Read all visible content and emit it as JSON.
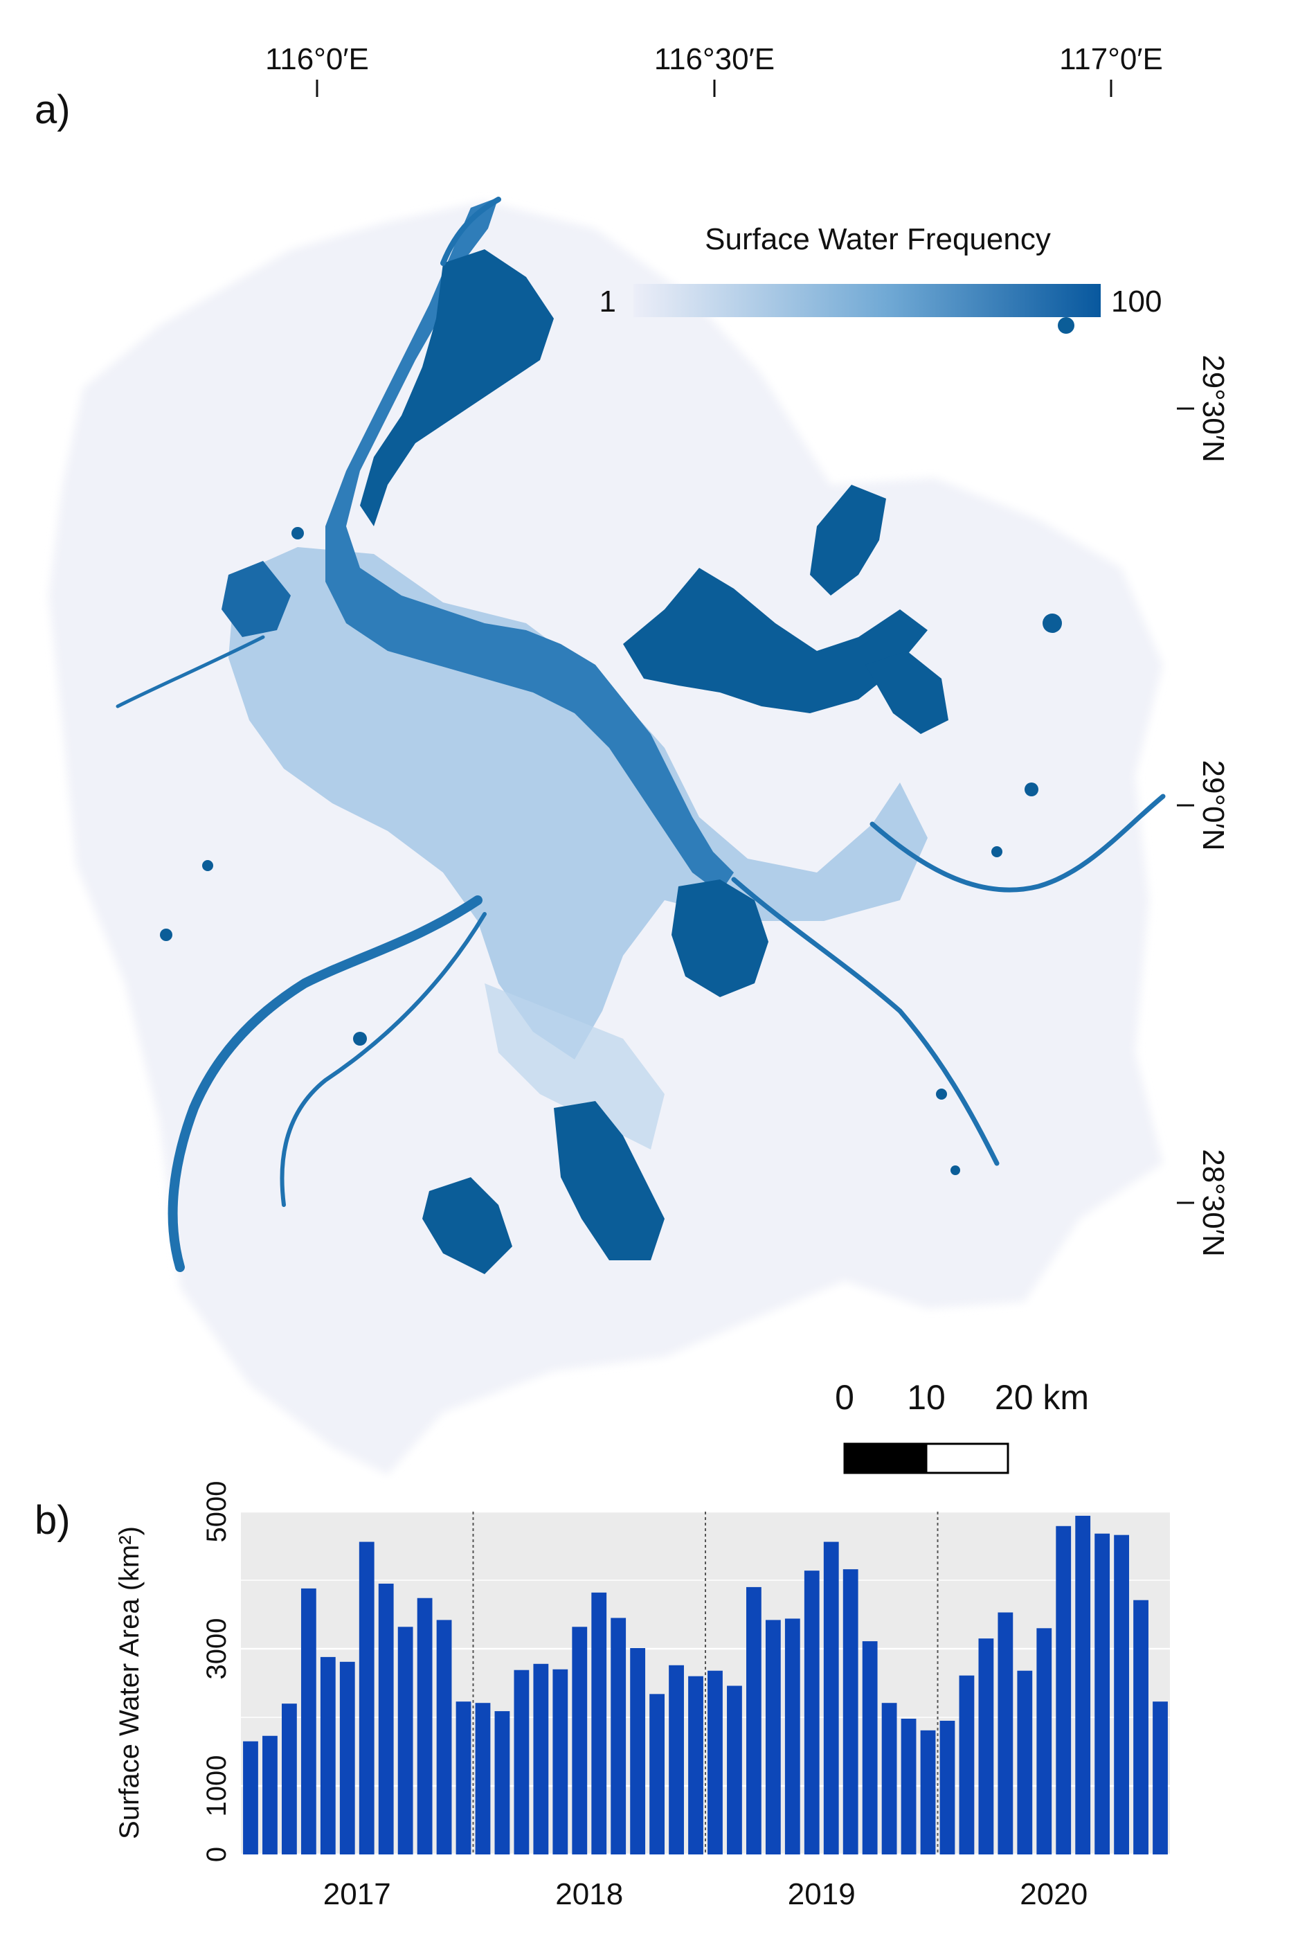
{
  "panel_a": {
    "label": "a)",
    "lon_ticks": [
      "116°0′E",
      "116°30′E",
      "117°0′E"
    ],
    "lat_ticks": [
      "29°30′N",
      "29°0′N",
      "28°30′N"
    ],
    "legend": {
      "title": "Surface Water Frequency",
      "min": "1",
      "max": "100",
      "color_low": "#eceef8",
      "color_high": "#08589e"
    },
    "scalebar": {
      "labels": [
        "0",
        "10",
        "20 km"
      ]
    },
    "water_color": "#0b5d98",
    "water_light_color": "#4f93c7"
  },
  "panel_b": {
    "label": "b)"
  },
  "chart_data": {
    "type": "bar",
    "ylabel": "Surface Water Area (km²)",
    "ylim": [
      0,
      5000
    ],
    "yticks": [
      "0",
      "1000",
      "3000",
      "5000"
    ],
    "grid": true,
    "bar_color": "#0d47b8",
    "background": "#ebebeb",
    "groups": [
      "2017",
      "2018",
      "2019",
      "2020"
    ],
    "bars_per_group": 12,
    "values": [
      1650,
      1730,
      2200,
      3880,
      2880,
      2810,
      4560,
      3950,
      3320,
      3740,
      3420,
      2230,
      2210,
      2090,
      2690,
      2780,
      2700,
      3320,
      3820,
      3450,
      3010,
      2340,
      2760,
      2600,
      2680,
      2460,
      3900,
      3420,
      3440,
      4140,
      4560,
      4160,
      3110,
      2210,
      1980,
      1810,
      1950,
      2610,
      3150,
      3530,
      2680,
      3300,
      4790,
      4940,
      4680,
      4660,
      3710,
      2230
    ]
  }
}
